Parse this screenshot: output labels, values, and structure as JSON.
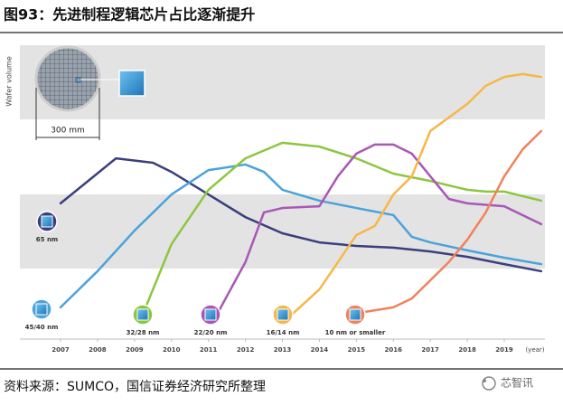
{
  "chart_data": {
    "type": "line",
    "title": "图93：先进制程逻辑芯片占比逐渐提升",
    "source": "资料来源：SUMCO，国信证券经济研究所整理",
    "watermark": "芯智讯",
    "ylabel": "Wafer volume",
    "xlabel": "(year)",
    "annotation": "300 mm",
    "xlim": [
      2005.9,
      2020.1
    ],
    "xticks": [
      2007,
      2008,
      2009,
      2010,
      2011,
      2012,
      2013,
      2014,
      2015,
      2016,
      2017,
      2018,
      2019
    ],
    "ylim": [
      0,
      100
    ],
    "series": [
      {
        "name": "65 nm",
        "color": "#3b3f7c",
        "x": [
          2007,
          2008.5,
          2009.5,
          2010,
          2011,
          2012,
          2013,
          2014,
          2015,
          2016,
          2017,
          2018,
          2019,
          2020
        ],
        "values": [
          46.2,
          61.5,
          60,
          56.9,
          49.2,
          41.5,
          36,
          32.9,
          31.7,
          31.1,
          29.8,
          28,
          25.5,
          23.1
        ]
      },
      {
        "name": "45/40 nm",
        "color": "#4ba3d9",
        "x": [
          2007,
          2008,
          2009,
          2010,
          2011,
          2012,
          2012.5,
          2013,
          2014,
          2015,
          2016,
          2016.5,
          2017,
          2018,
          2019,
          2020
        ],
        "values": [
          10.8,
          23.1,
          36.9,
          49.2,
          57.5,
          59.4,
          56.9,
          50.8,
          47.1,
          44.6,
          42.2,
          34.8,
          32.9,
          30.2,
          27.7,
          25.5
        ]
      },
      {
        "name": "32/28 nm",
        "color": "#8dc63f",
        "x": [
          2009.2,
          2010,
          2011,
          2012,
          2013,
          2014,
          2015,
          2016,
          2017,
          2018,
          2018.5,
          2019,
          2020
        ],
        "values": [
          7.7,
          32.3,
          50.8,
          61.5,
          66.8,
          65.5,
          61.5,
          56.3,
          53.8,
          50.8,
          50.2,
          50.2,
          47.1
        ]
      },
      {
        "name": "22/20 nm",
        "color": "#a957b6",
        "x": [
          2011.2,
          2012,
          2012.5,
          2013,
          2014,
          2014.5,
          2015,
          2015.5,
          2016,
          2016.5,
          2017,
          2017.5,
          2018,
          2019,
          2020
        ],
        "values": [
          7.7,
          26.2,
          43.1,
          44.6,
          45.2,
          55.4,
          63.1,
          66.2,
          66.2,
          63.1,
          55.4,
          47.7,
          46.2,
          45.2,
          39.1
        ]
      },
      {
        "name": "16/14 nm",
        "color": "#f7b748",
        "x": [
          2013.2,
          2014,
          2015,
          2015.5,
          2016,
          2016.5,
          2017,
          2017.5,
          2018,
          2018.5,
          2019,
          2019.5,
          2020
        ],
        "values": [
          7.7,
          16.9,
          35.4,
          38.5,
          49.2,
          55.4,
          70.8,
          75.4,
          80,
          86.2,
          89.2,
          90.2,
          89.2
        ]
      },
      {
        "name": "10 nm or smaller",
        "color": "#f0825c",
        "x": [
          2015.2,
          2016,
          2016.5,
          2017,
          2017.5,
          2018,
          2018.5,
          2019,
          2019.5,
          2020
        ],
        "values": [
          9.2,
          10.8,
          13.8,
          20,
          26.2,
          33.8,
          43.1,
          55.4,
          64.6,
          70.8
        ]
      }
    ]
  }
}
